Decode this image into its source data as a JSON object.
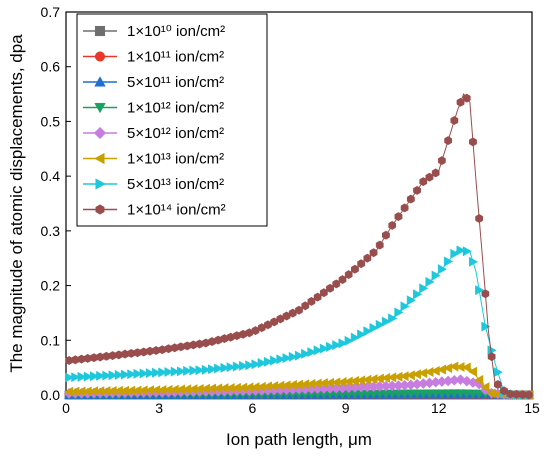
{
  "chart_data": {
    "type": "line",
    "title": "",
    "xlabel": "Ion path length, μm",
    "ylabel": "The magnitude of atomic displacements, dpa",
    "xlim": [
      0,
      15
    ],
    "ylim": [
      0,
      0.7
    ],
    "x_ticks": [
      "0",
      "3",
      "6",
      "9",
      "12",
      "15"
    ],
    "y_ticks": [
      "0.0",
      "0.1",
      "0.2",
      "0.3",
      "0.4",
      "0.5",
      "0.6",
      "0.7"
    ],
    "grid": false,
    "legend_position": "top-left",
    "series": [
      {
        "name": "1×10¹⁰ ion/cm²",
        "color": "#6e6e6e",
        "marker": "square",
        "points": [
          [
            0.1,
            0.0
          ],
          [
            13.7,
            0.0
          ],
          [
            14.3,
            0.0
          ],
          [
            15.0,
            0.0
          ]
        ]
      },
      {
        "name": "1×10¹¹ ion/cm²",
        "color": "#e8362b",
        "marker": "circle",
        "points": [
          [
            0.1,
            0.0
          ],
          [
            13.7,
            0.0
          ],
          [
            14.3,
            0.0
          ],
          [
            15.0,
            0.0
          ]
        ]
      },
      {
        "name": "5×10¹¹ ion/cm²",
        "color": "#1f6fd1",
        "marker": "triangle-up",
        "points": [
          [
            0.1,
            0.0
          ],
          [
            13.7,
            0.001
          ],
          [
            14.3,
            0.0
          ],
          [
            15.0,
            0.0
          ]
        ]
      },
      {
        "name": "1×10¹² ion/cm²",
        "color": "#1aa064",
        "marker": "triangle-down",
        "points": [
          [
            0.1,
            0.0
          ],
          [
            6.0,
            0.001
          ],
          [
            12.7,
            0.003
          ],
          [
            13.5,
            0.002
          ],
          [
            14.3,
            0.0
          ],
          [
            15.0,
            0.0
          ]
        ]
      },
      {
        "name": "5×10¹² ion/cm²",
        "color": "#c77ddf",
        "marker": "diamond",
        "points": [
          [
            0.1,
            0.003
          ],
          [
            3.0,
            0.005
          ],
          [
            6.0,
            0.008
          ],
          [
            9.0,
            0.013
          ],
          [
            11.0,
            0.018
          ],
          [
            12.0,
            0.024
          ],
          [
            12.7,
            0.028
          ],
          [
            13.3,
            0.02
          ],
          [
            13.6,
            0.004
          ],
          [
            14.3,
            0.0
          ],
          [
            15.0,
            0.0
          ]
        ]
      },
      {
        "name": "1×10¹³ ion/cm²",
        "color": "#c9a000",
        "marker": "triangle-left",
        "points": [
          [
            0.1,
            0.006
          ],
          [
            3.0,
            0.009
          ],
          [
            6.0,
            0.014
          ],
          [
            9.0,
            0.024
          ],
          [
            11.0,
            0.035
          ],
          [
            12.0,
            0.045
          ],
          [
            12.5,
            0.052
          ],
          [
            13.0,
            0.05
          ],
          [
            13.4,
            0.02
          ],
          [
            13.7,
            0.003
          ],
          [
            14.3,
            0.0
          ],
          [
            15.0,
            0.0
          ]
        ]
      },
      {
        "name": "5×10¹³ ion/cm²",
        "color": "#1ec8dc",
        "marker": "triangle-right",
        "points": [
          [
            0.1,
            0.032
          ],
          [
            1.5,
            0.036
          ],
          [
            3.0,
            0.041
          ],
          [
            4.5,
            0.046
          ],
          [
            6.0,
            0.055
          ],
          [
            7.5,
            0.072
          ],
          [
            9.0,
            0.096
          ],
          [
            10.5,
            0.14
          ],
          [
            11.5,
            0.195
          ],
          [
            12.1,
            0.23
          ],
          [
            12.6,
            0.265
          ],
          [
            13.0,
            0.262
          ],
          [
            13.2,
            0.225
          ],
          [
            13.5,
            0.125
          ],
          [
            13.8,
            0.06
          ],
          [
            14.1,
            0.005
          ],
          [
            14.5,
            0.0
          ],
          [
            15.0,
            0.0
          ]
        ]
      },
      {
        "name": "1×10¹⁴ ion/cm²",
        "color": "#9a4d4d",
        "marker": "hexagon",
        "points": [
          [
            0.1,
            0.063
          ],
          [
            1.5,
            0.072
          ],
          [
            3.0,
            0.082
          ],
          [
            4.5,
            0.095
          ],
          [
            6.0,
            0.115
          ],
          [
            7.5,
            0.155
          ],
          [
            9.0,
            0.215
          ],
          [
            10.0,
            0.265
          ],
          [
            10.5,
            0.31
          ],
          [
            11.0,
            0.35
          ],
          [
            11.5,
            0.39
          ],
          [
            12.0,
            0.41
          ],
          [
            12.3,
            0.465
          ],
          [
            12.6,
            0.52
          ],
          [
            12.8,
            0.55
          ],
          [
            13.0,
            0.535
          ],
          [
            13.2,
            0.39
          ],
          [
            13.4,
            0.255
          ],
          [
            13.6,
            0.115
          ],
          [
            13.8,
            0.025
          ],
          [
            14.2,
            0.002
          ],
          [
            15.0,
            0.0
          ]
        ]
      }
    ]
  }
}
